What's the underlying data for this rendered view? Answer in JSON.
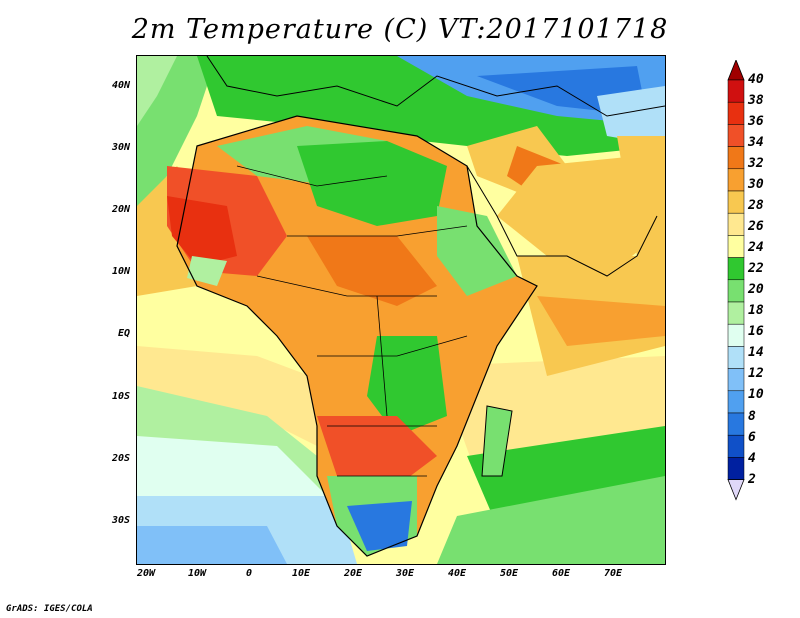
{
  "title": "2m Temperature (C) VT:2017101718",
  "credit": "GrADS: IGES/COLA",
  "map": {
    "x_ticks": [
      "20W",
      "10W",
      "0",
      "10E",
      "20E",
      "30E",
      "40E",
      "50E",
      "60E",
      "70E"
    ],
    "y_ticks": [
      "40N",
      "30N",
      "20N",
      "10N",
      "EQ",
      "10S",
      "20S",
      "30S"
    ]
  },
  "colorbar": {
    "levels": [
      "40",
      "38",
      "36",
      "34",
      "32",
      "30",
      "28",
      "26",
      "24",
      "22",
      "20",
      "18",
      "16",
      "14",
      "12",
      "10",
      "8",
      "6",
      "4",
      "2"
    ],
    "colors": [
      "#a00000",
      "#d01010",
      "#e83010",
      "#f05028",
      "#f07818",
      "#f8a030",
      "#f8c850",
      "#ffe890",
      "#ffffa0",
      "#30c830",
      "#78e070",
      "#b0f0a0",
      "#e0fff0",
      "#b0e0f8",
      "#80c0f8",
      "#50a0f0",
      "#2878e0",
      "#1050c8",
      "#0020a0",
      "#e0d8f8"
    ]
  }
}
